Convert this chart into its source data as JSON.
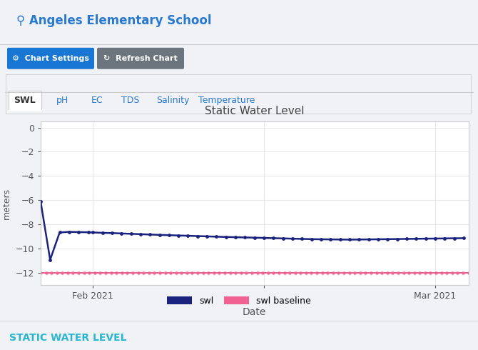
{
  "title": "Static Water Level",
  "xlabel": "Date",
  "ylabel": "meters",
  "school_name": "⚲ Angeles Elementary School",
  "static_label": "STATIC WATER LEVEL",
  "tabs": [
    "SWL",
    "pH",
    "EC",
    "TDS",
    "Salinity",
    "Temperature"
  ],
  "ylim": [
    -13,
    0.5
  ],
  "yticks": [
    0,
    -2,
    -4,
    -6,
    -8,
    -10,
    -12
  ],
  "swl_color": "#1a237e",
  "baseline_color": "#f06292",
  "header_bg": "#e8ecf0",
  "chart_bg": "#ffffff",
  "outer_bg": "#f0f2f5",
  "btn_settings_color": "#1976d2",
  "btn_refresh_color": "#6c757d",
  "title_color": "#2979d0",
  "static_text_color": "#29b6d0",
  "grid_color": "#e8e8e8",
  "tab_border_color": "#cccccc",
  "swl_data_x": [
    0,
    2,
    4,
    6,
    8,
    10,
    11,
    13,
    15,
    17,
    19,
    21,
    23,
    25,
    27,
    29,
    31,
    33,
    35,
    37,
    39,
    41,
    43,
    45,
    47,
    49,
    51,
    53,
    55,
    57,
    59,
    61,
    63,
    65,
    67,
    69,
    71,
    73,
    75,
    77,
    79,
    81,
    83,
    85,
    87,
    89
  ],
  "swl_data_y": [
    -6.1,
    -10.9,
    -8.65,
    -8.6,
    -8.62,
    -8.63,
    -8.65,
    -8.68,
    -8.7,
    -8.73,
    -8.76,
    -8.79,
    -8.82,
    -8.85,
    -8.87,
    -8.9,
    -8.92,
    -8.95,
    -8.97,
    -9.0,
    -9.02,
    -9.04,
    -9.06,
    -9.08,
    -9.1,
    -9.12,
    -9.14,
    -9.16,
    -9.18,
    -9.2,
    -9.21,
    -9.22,
    -9.23,
    -9.24,
    -9.23,
    -9.22,
    -9.21,
    -9.2,
    -9.19,
    -9.18,
    -9.17,
    -9.16,
    -9.15,
    -9.14,
    -9.13,
    -9.12
  ],
  "baseline_x_count": 80,
  "baseline_y": -12.0,
  "x_tick_positions": [
    11,
    47,
    83
  ],
  "x_tick_labels": [
    "Feb 2021",
    "",
    "Mar 2021"
  ],
  "x_max": 90,
  "legend_swl": "swl",
  "legend_baseline": "swl baseline"
}
